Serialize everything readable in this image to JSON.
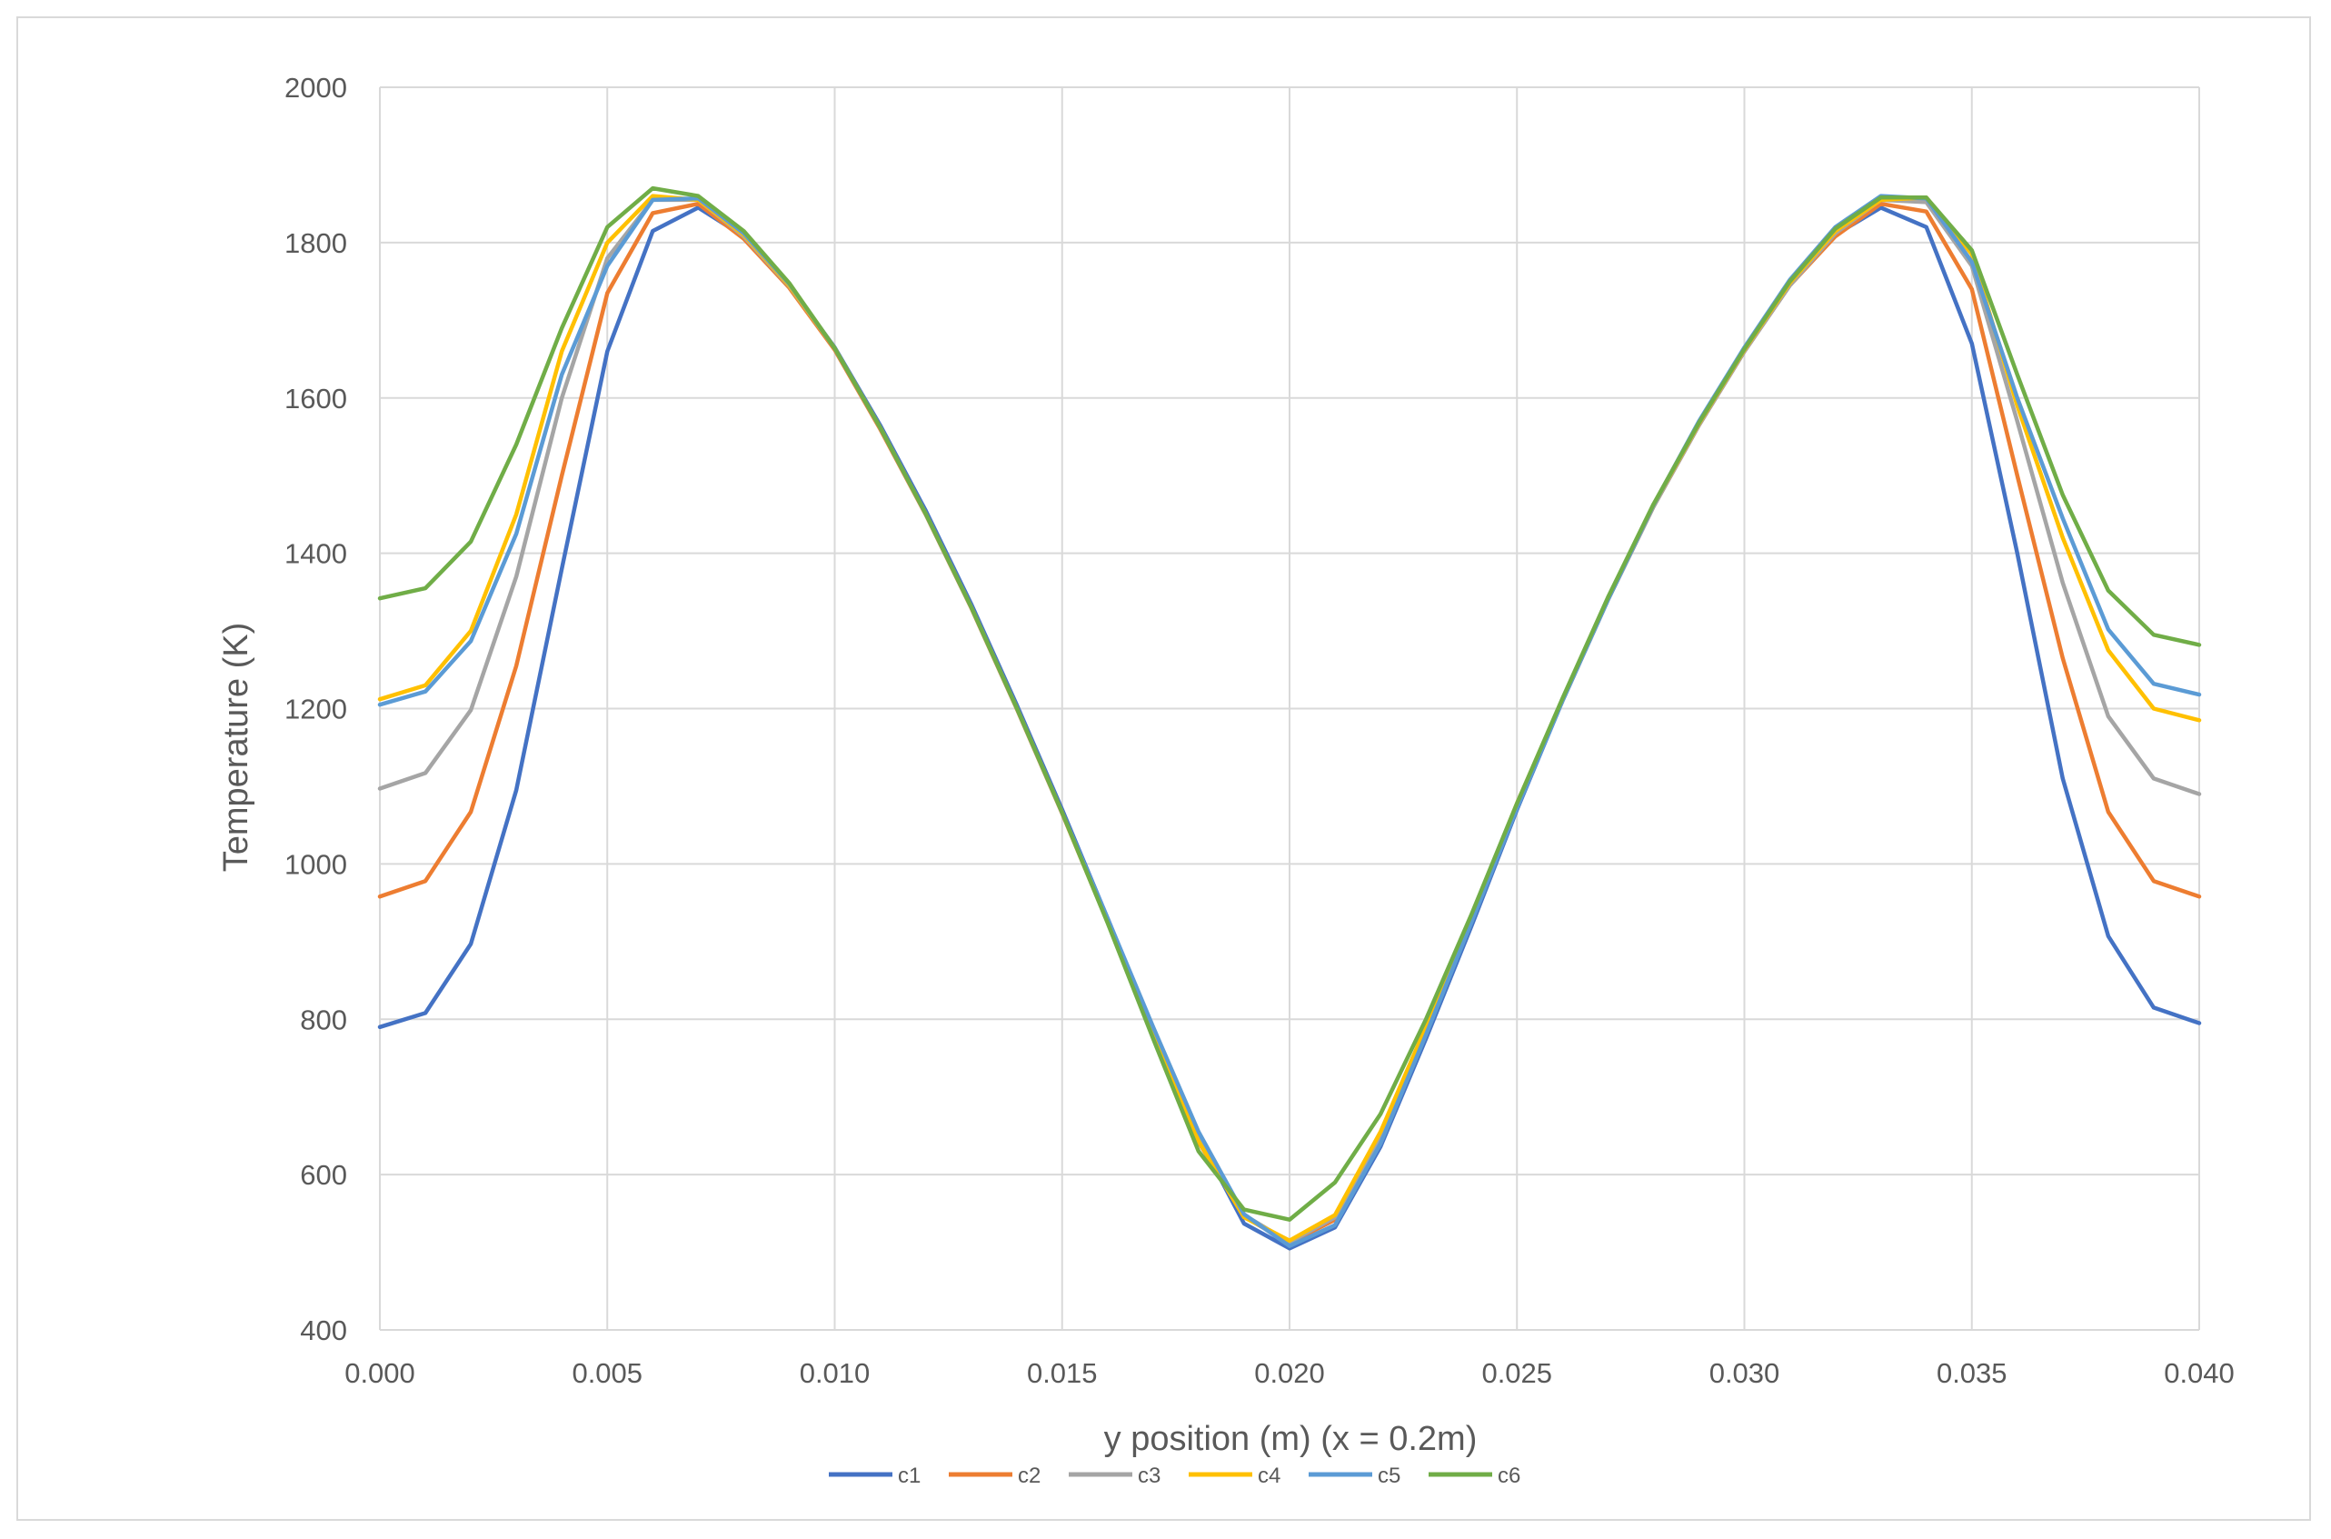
{
  "chart_data": {
    "type": "line",
    "title": "",
    "xlabel": "y position (m) (x = 0.2m)",
    "ylabel": "Temperature (K)",
    "xlim": [
      0,
      0.04
    ],
    "ylim": [
      400,
      2000
    ],
    "xticks": [
      "0.000",
      "0.005",
      "0.010",
      "0.015",
      "0.020",
      "0.025",
      "0.030",
      "0.035",
      "0.040"
    ],
    "yticks": [
      "400",
      "600",
      "800",
      "1000",
      "1200",
      "1400",
      "1600",
      "1800",
      "2000"
    ],
    "grid": true,
    "legend_position": "bottom",
    "x": [
      0,
      0.001,
      0.002,
      0.003,
      0.004,
      0.005,
      0.006,
      0.007,
      0.008,
      0.009,
      0.01,
      0.011,
      0.012,
      0.013,
      0.014,
      0.015,
      0.016,
      0.017,
      0.018,
      0.019,
      0.02,
      0.021,
      0.022,
      0.023,
      0.024,
      0.025,
      0.026,
      0.027,
      0.028,
      0.029,
      0.03,
      0.031,
      0.032,
      0.033,
      0.034,
      0.035,
      0.036,
      0.037,
      0.038,
      0.039,
      0.04
    ],
    "series": [
      {
        "name": "c1",
        "color": "#4472c4",
        "values": [
          790,
          808,
          897,
          1095,
          1380,
          1660,
          1815,
          1845,
          1808,
          1745,
          1665,
          1565,
          1455,
          1335,
          1205,
          1070,
          930,
          785,
          648,
          537,
          505,
          532,
          636,
          775,
          920,
          1070,
          1210,
          1340,
          1460,
          1565,
          1660,
          1745,
          1810,
          1845,
          1820,
          1670,
          1400,
          1110,
          907,
          815,
          795
        ]
      },
      {
        "name": "c2",
        "color": "#ed7d31",
        "values": [
          958,
          978,
          1067,
          1255,
          1500,
          1735,
          1838,
          1850,
          1805,
          1742,
          1662,
          1560,
          1450,
          1330,
          1200,
          1065,
          925,
          780,
          642,
          546,
          512,
          542,
          648,
          785,
          928,
          1075,
          1210,
          1340,
          1460,
          1565,
          1660,
          1745,
          1808,
          1850,
          1840,
          1740,
          1500,
          1265,
          1067,
          978,
          958
        ]
      },
      {
        "name": "c3",
        "color": "#a5a5a5",
        "values": [
          1097,
          1117,
          1198,
          1370,
          1600,
          1780,
          1855,
          1855,
          1808,
          1744,
          1664,
          1562,
          1451,
          1331,
          1201,
          1066,
          926,
          781,
          645,
          548,
          513,
          545,
          650,
          788,
          930,
          1075,
          1210,
          1340,
          1460,
          1565,
          1660,
          1745,
          1812,
          1855,
          1852,
          1770,
          1570,
          1362,
          1190,
          1110,
          1090
        ]
      },
      {
        "name": "c4",
        "color": "#ffc000",
        "values": [
          1212,
          1230,
          1300,
          1450,
          1660,
          1800,
          1860,
          1855,
          1810,
          1745,
          1664,
          1562,
          1451,
          1331,
          1201,
          1066,
          925,
          780,
          643,
          545,
          515,
          548,
          655,
          790,
          932,
          1078,
          1212,
          1342,
          1462,
          1567,
          1662,
          1748,
          1815,
          1855,
          1858,
          1785,
          1590,
          1420,
          1275,
          1200,
          1185
        ]
      },
      {
        "name": "c5",
        "color": "#5b9bd5",
        "values": [
          1205,
          1222,
          1287,
          1425,
          1630,
          1770,
          1855,
          1857,
          1812,
          1747,
          1664,
          1562,
          1451,
          1331,
          1201,
          1066,
          930,
          790,
          655,
          549,
          508,
          535,
          640,
          780,
          925,
          1072,
          1210,
          1340,
          1462,
          1570,
          1665,
          1752,
          1820,
          1860,
          1857,
          1775,
          1600,
          1445,
          1302,
          1232,
          1218
        ]
      },
      {
        "name": "c6",
        "color": "#70ad47",
        "values": [
          1342,
          1355,
          1415,
          1540,
          1690,
          1820,
          1870,
          1860,
          1815,
          1748,
          1664,
          1562,
          1451,
          1331,
          1201,
          1066,
          924,
          775,
          630,
          555,
          542,
          590,
          678,
          800,
          935,
          1078,
          1213,
          1343,
          1463,
          1568,
          1663,
          1750,
          1818,
          1858,
          1858,
          1790,
          1630,
          1475,
          1352,
          1295,
          1282
        ]
      }
    ]
  }
}
